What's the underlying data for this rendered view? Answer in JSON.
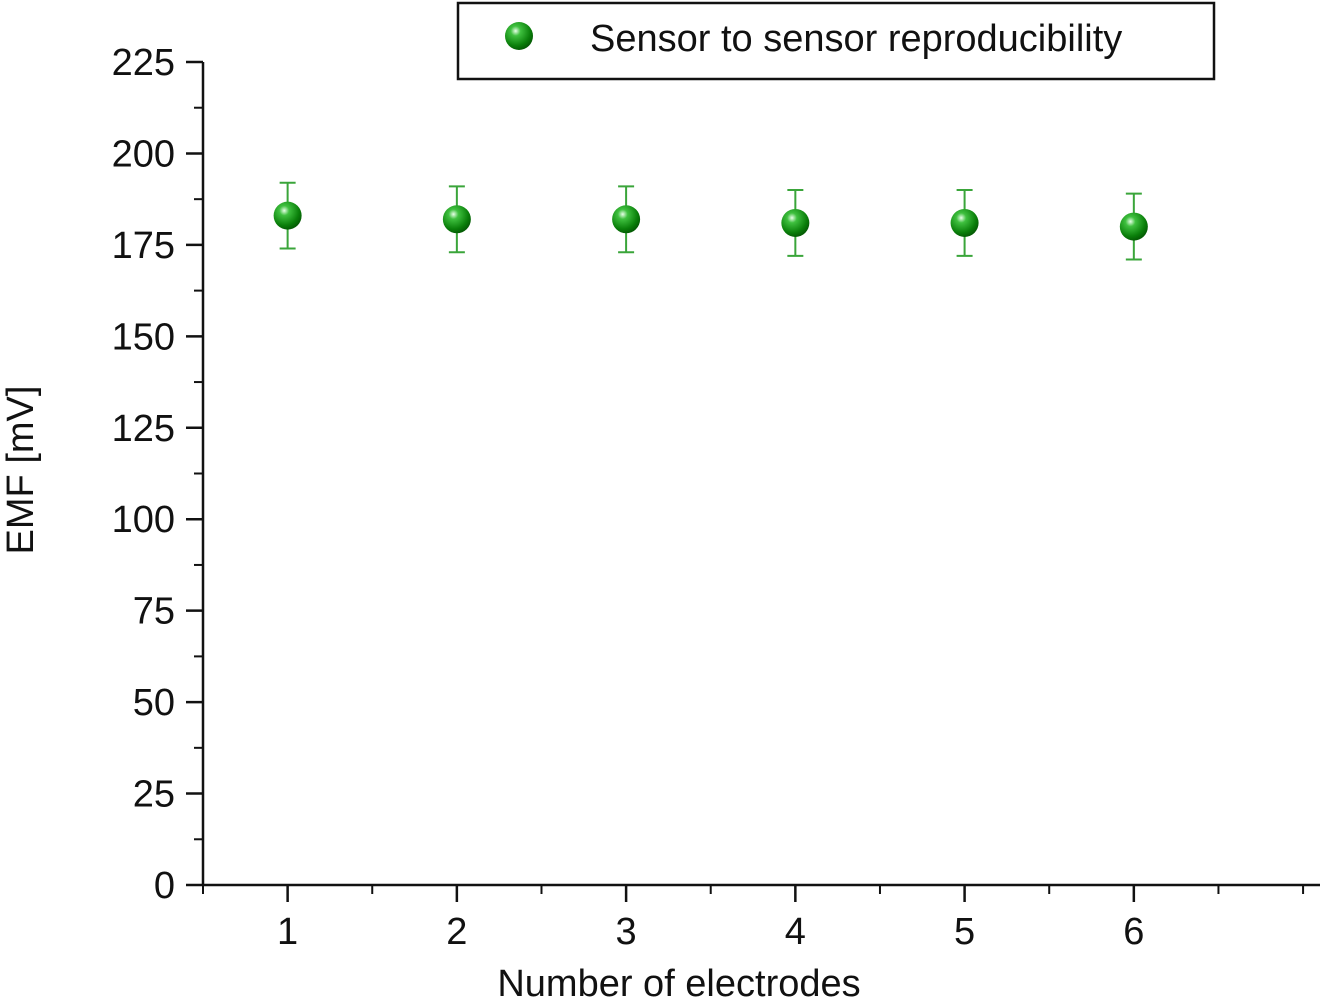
{
  "chart_data": {
    "type": "scatter",
    "title": "",
    "xlabel": "Number of electrodes",
    "ylabel": "EMF [mV]",
    "xlim": [
      0.5,
      7.1
    ],
    "ylim": [
      0,
      225
    ],
    "xticks": [
      1,
      2,
      3,
      4,
      5,
      6
    ],
    "yticks": [
      0,
      25,
      50,
      75,
      100,
      125,
      150,
      175,
      200,
      225
    ],
    "grid": false,
    "legend": "top-right",
    "colors": {
      "series": "#0a8a0a",
      "error_bar": "#3aa53a",
      "axis": "#111111"
    },
    "series": [
      {
        "name": "Sensor to sensor reproducibility",
        "x": [
          1,
          2,
          3,
          4,
          5,
          6
        ],
        "y": [
          183,
          182,
          182,
          181,
          181,
          180
        ],
        "error": [
          9,
          9,
          9,
          9,
          9,
          9
        ]
      }
    ]
  }
}
